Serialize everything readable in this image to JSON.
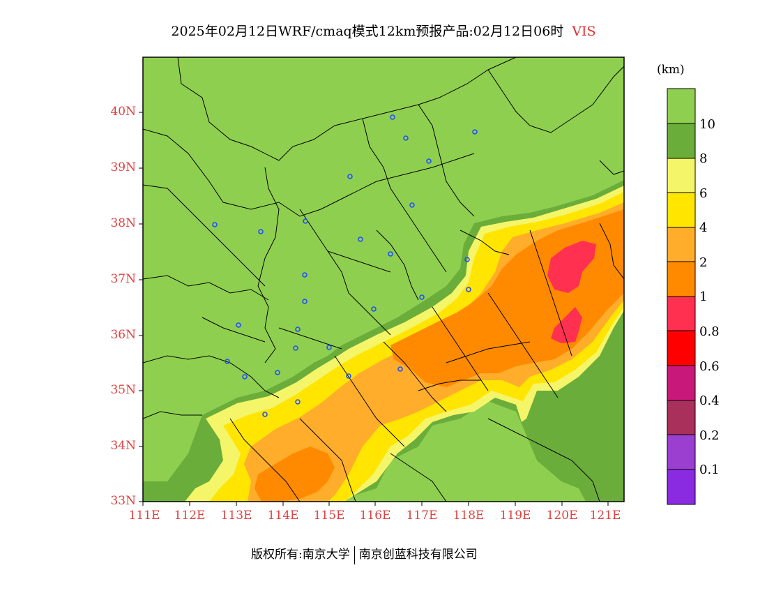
{
  "title": {
    "text": "2025年02月12日WRF/cmaq模式12km预报产品:02月12日06时",
    "variable": "VIS"
  },
  "map": {
    "lat_labels": [
      "40N",
      "39N",
      "38N",
      "37N",
      "36N",
      "35N",
      "34N",
      "33N"
    ],
    "lon_labels": [
      "111E",
      "112E",
      "113E",
      "114E",
      "115E",
      "116E",
      "117E",
      "118E",
      "119E",
      "120E",
      "121E"
    ],
    "colors": {
      "vis_gt10": "#8fcf4f",
      "vis_8_10": "#6aad3a",
      "vis_6_8": "#f5f56a",
      "vis_4_6": "#ffe500",
      "vis_2_4": "#ffad2a",
      "vis_1_2": "#ff8a00",
      "vis_08_1": "#ff3050",
      "boundary": "#000000",
      "city_marker": "#1f4fff"
    }
  },
  "colorbar": {
    "unit": "(km)",
    "labels": [
      "10",
      "8",
      "6",
      "4",
      "2",
      "1",
      "0.8",
      "0.6",
      "0.4",
      "0.2",
      "0.1"
    ],
    "colors": [
      "#8fcf4f",
      "#6aad3a",
      "#f5f56a",
      "#ffe500",
      "#ffad2a",
      "#ff8a00",
      "#ff3050",
      "#ff0000",
      "#c8187a",
      "#a8305a",
      "#9a3fd0",
      "#8a2be2"
    ]
  },
  "footer": {
    "left": "版权所有:南京大学",
    "right": "南京创蓝科技有限公司"
  }
}
